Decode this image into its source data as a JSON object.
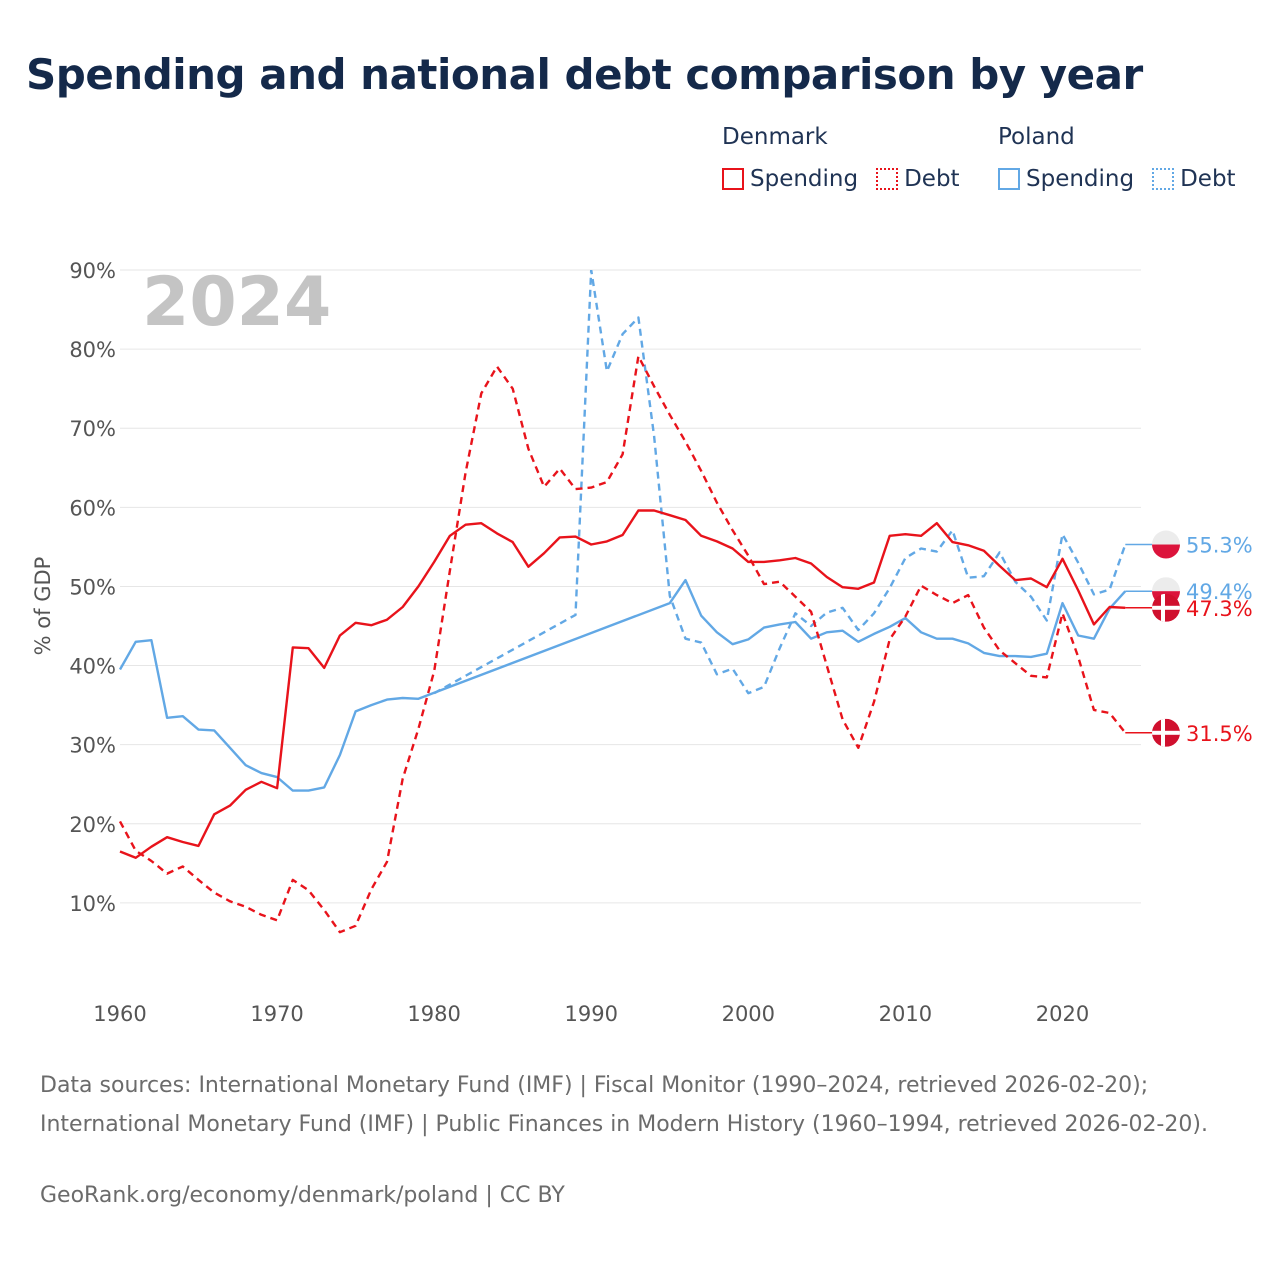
{
  "title": "Spending and national debt comparison by year",
  "legend": {
    "groups": [
      {
        "country": "Denmark",
        "color": "#e8131b",
        "items": [
          {
            "label": "Spending",
            "style": "solid"
          },
          {
            "label": "Debt",
            "style": "dotted"
          }
        ]
      },
      {
        "country": "Poland",
        "color": "#62a8e5",
        "items": [
          {
            "label": "Spending",
            "style": "solid"
          },
          {
            "label": "Debt",
            "style": "dotted"
          }
        ]
      }
    ]
  },
  "chart_data": {
    "type": "line",
    "year_label": "2024",
    "ylabel": "% of GDP",
    "ylim": [
      0,
      90
    ],
    "xlim": [
      1960,
      2025
    ],
    "y_ticks": [
      10,
      20,
      30,
      40,
      50,
      60,
      70,
      80,
      90
    ],
    "y_tick_labels": [
      "10%",
      "20%",
      "30%",
      "40%",
      "50%",
      "60%",
      "70%",
      "80%",
      "90%"
    ],
    "x_ticks": [
      1960,
      1970,
      1980,
      1990,
      2000,
      2010,
      2020
    ],
    "x_tick_labels": [
      "1960",
      "1970",
      "1980",
      "1990",
      "2000",
      "2010",
      "2020"
    ],
    "series": [
      {
        "name": "Denmark Spending",
        "country": "Denmark",
        "metric": "Spending",
        "color": "#e8131b",
        "dash": "solid",
        "x": [
          1960,
          1961,
          1962,
          1963,
          1964,
          1965,
          1966,
          1967,
          1968,
          1969,
          1970,
          1971,
          1972,
          1973,
          1974,
          1975,
          1976,
          1977,
          1978,
          1979,
          1980,
          1981,
          1982,
          1983,
          1984,
          1985,
          1986,
          1987,
          1988,
          1989,
          1990,
          1991,
          1992,
          1993,
          1994,
          1995,
          1996,
          1997,
          1998,
          1999,
          2000,
          2001,
          2002,
          2003,
          2004,
          2005,
          2006,
          2007,
          2008,
          2009,
          2010,
          2011,
          2012,
          2013,
          2014,
          2015,
          2016,
          2017,
          2018,
          2019,
          2020,
          2021,
          2022,
          2023,
          2024
        ],
        "values": [
          16.5,
          15.7,
          17.1,
          18.3,
          17.7,
          17.2,
          21.2,
          22.3,
          24.3,
          25.3,
          24.5,
          42.3,
          42.2,
          39.7,
          43.8,
          45.4,
          45.1,
          45.8,
          47.4,
          50.0,
          53.1,
          56.4,
          57.8,
          58.0,
          56.7,
          55.6,
          52.5,
          54.2,
          56.2,
          56.3,
          55.3,
          55.7,
          56.5,
          59.6,
          59.6,
          59.0,
          58.4,
          56.4,
          55.7,
          54.8,
          53.1,
          53.1,
          53.3,
          53.6,
          52.9,
          51.2,
          49.9,
          49.7,
          50.5,
          56.4,
          56.6,
          56.4,
          58.0,
          55.6,
          55.2,
          54.5,
          52.6,
          50.8,
          51.0,
          49.9,
          53.5,
          49.5,
          45.2,
          47.4,
          47.3
        ]
      },
      {
        "name": "Denmark Debt",
        "country": "Denmark",
        "metric": "Debt",
        "color": "#e8131b",
        "dash": "dashed",
        "x": [
          1960,
          1961,
          1962,
          1963,
          1964,
          1965,
          1966,
          1967,
          1968,
          1969,
          1970,
          1971,
          1972,
          1973,
          1974,
          1975,
          1976,
          1977,
          1978,
          1979,
          1980,
          1981,
          1982,
          1983,
          1984,
          1985,
          1986,
          1987,
          1988,
          1989,
          1990,
          1991,
          1992,
          1993,
          1994,
          1995,
          1996,
          1997,
          1998,
          1999,
          2000,
          2001,
          2002,
          2003,
          2004,
          2005,
          2006,
          2007,
          2008,
          2009,
          2010,
          2011,
          2012,
          2013,
          2014,
          2015,
          2016,
          2017,
          2018,
          2019,
          2020,
          2021,
          2022,
          2023,
          2024
        ],
        "values": [
          20.3,
          16.6,
          15.3,
          13.7,
          14.6,
          12.9,
          11.3,
          10.2,
          9.5,
          8.5,
          7.8,
          12.9,
          11.6,
          9.1,
          6.3,
          7.1,
          11.7,
          15.2,
          25.7,
          32.0,
          39.3,
          52.0,
          64.4,
          74.4,
          77.8,
          75.0,
          67.4,
          62.6,
          64.9,
          62.3,
          62.5,
          63.2,
          66.7,
          79.1,
          75.3,
          71.7,
          68.3,
          64.6,
          60.6,
          57.1,
          53.9,
          50.3,
          50.6,
          48.7,
          46.8,
          40.0,
          33.2,
          29.6,
          35.4,
          43.3,
          46.2,
          50.1,
          48.9,
          47.9,
          48.9,
          44.8,
          41.9,
          40.3,
          38.7,
          38.5,
          46.6,
          41.1,
          34.4,
          34.0,
          31.5
        ]
      },
      {
        "name": "Poland Spending",
        "country": "Poland",
        "metric": "Spending",
        "color": "#62a8e5",
        "dash": "solid",
        "x": [
          1960,
          1961,
          1962,
          1963,
          1964,
          1965,
          1966,
          1967,
          1968,
          1969,
          1970,
          1971,
          1972,
          1973,
          1974,
          1975,
          1976,
          1977,
          1978,
          1979,
          1995,
          1996,
          1997,
          1998,
          1999,
          2000,
          2001,
          2002,
          2003,
          2004,
          2005,
          2006,
          2007,
          2008,
          2009,
          2010,
          2011,
          2012,
          2013,
          2014,
          2015,
          2016,
          2017,
          2018,
          2019,
          2020,
          2021,
          2022,
          2023,
          2024
        ],
        "values": [
          39.5,
          43.0,
          43.2,
          33.4,
          33.6,
          31.9,
          31.8,
          29.6,
          27.4,
          26.4,
          25.9,
          24.2,
          24.2,
          24.6,
          28.7,
          34.2,
          35.0,
          35.7,
          35.9,
          35.8,
          47.9,
          50.8,
          46.3,
          44.2,
          42.7,
          43.3,
          44.8,
          45.2,
          45.5,
          43.4,
          44.2,
          44.4,
          43.0,
          44.0,
          44.9,
          46.0,
          44.2,
          43.4,
          43.4,
          42.8,
          41.6,
          41.2,
          41.2,
          41.1,
          41.5,
          47.9,
          43.8,
          43.4,
          47.2,
          49.4
        ]
      },
      {
        "name": "Poland Debt",
        "country": "Poland",
        "metric": "Debt",
        "color": "#62a8e5",
        "dash": "dashed",
        "x": [
          1980,
          1981,
          1982,
          1983,
          1984,
          1985,
          1986,
          1987,
          1988,
          1989,
          1990,
          1991,
          1992,
          1993,
          1994,
          1995,
          1996,
          1997,
          1998,
          1999,
          2000,
          2001,
          2002,
          2003,
          2004,
          2005,
          2006,
          2007,
          2008,
          2009,
          2010,
          2011,
          2012,
          2013,
          2014,
          2015,
          2016,
          2017,
          2018,
          2019,
          2020,
          2021,
          2022,
          2023,
          2024
        ],
        "values": [
          36.5,
          37.6,
          38.7,
          39.8,
          40.9,
          42.0,
          43.1,
          44.2,
          45.3,
          46.4,
          90.0,
          77.2,
          81.9,
          84.0,
          69.0,
          48.8,
          43.4,
          42.9,
          38.9,
          39.6,
          36.5,
          37.3,
          42.2,
          46.6,
          45.0,
          46.7,
          47.3,
          44.5,
          46.6,
          49.8,
          53.6,
          54.8,
          54.4,
          57.1,
          51.1,
          51.3,
          54.3,
          50.6,
          48.7,
          45.7,
          56.6,
          53.0,
          49.0,
          49.6,
          55.3
        ]
      }
    ],
    "end_labels": [
      {
        "series": "Poland Debt",
        "value": 55.3,
        "text": "55.3%",
        "color": "#62a8e5",
        "flag": "poland"
      },
      {
        "series": "Poland Spending",
        "value": 49.4,
        "text": "49.4%",
        "color": "#62a8e5",
        "flag": "poland"
      },
      {
        "series": "Denmark Spending",
        "value": 47.3,
        "text": "47.3%",
        "color": "#e8131b",
        "flag": "denmark"
      },
      {
        "series": "Denmark Debt",
        "value": 31.5,
        "text": "31.5%",
        "color": "#e8131b",
        "flag": "denmark"
      }
    ]
  },
  "footer": {
    "sources": "Data sources: International Monetary Fund (IMF) | Fiscal Monitor (1990–2024, retrieved 2026-02-20); International Monetary Fund (IMF) | Public Finances in Modern History (1960–1994, retrieved 2026-02-20).",
    "credit": "GeoRank.org/economy/denmark/poland | CC BY"
  }
}
